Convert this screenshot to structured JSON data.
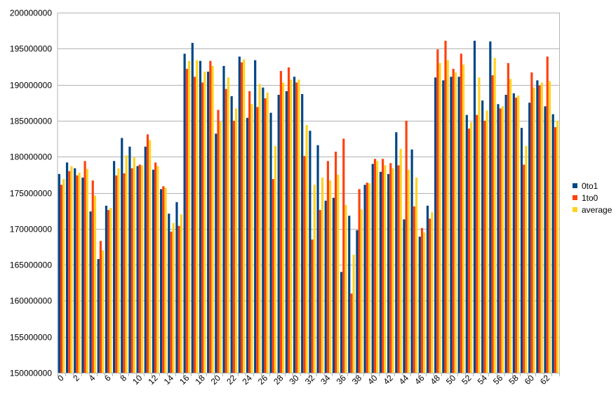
{
  "chart_data": {
    "type": "bar",
    "title": "",
    "xlabel": "",
    "ylabel": "",
    "ylim": [
      150000000,
      200000000
    ],
    "yticks": [
      150000000,
      155000000,
      160000000,
      165000000,
      170000000,
      175000000,
      180000000,
      185000000,
      190000000,
      195000000,
      200000000
    ],
    "xtick_labels": [
      "0",
      "2",
      "4",
      "6",
      "8",
      "10",
      "12",
      "14",
      "16",
      "18",
      "20",
      "22",
      "24",
      "26",
      "28",
      "30",
      "32",
      "34",
      "36",
      "38",
      "40",
      "42",
      "44",
      "46",
      "48",
      "50",
      "52",
      "54",
      "56",
      "58",
      "60",
      "62"
    ],
    "grid": "horizontal",
    "legend_position": "right",
    "colors": [
      "#004586",
      "#ff420e",
      "#ffd320"
    ],
    "categories": [
      "0",
      "1",
      "2",
      "3",
      "4",
      "5",
      "6",
      "7",
      "8",
      "9",
      "10",
      "11",
      "12",
      "13",
      "14",
      "15",
      "16",
      "17",
      "18",
      "19",
      "20",
      "21",
      "22",
      "23",
      "24",
      "25",
      "26",
      "27",
      "28",
      "29",
      "30",
      "31",
      "32",
      "33",
      "34",
      "35",
      "36",
      "37",
      "38",
      "39",
      "40",
      "41",
      "42",
      "43",
      "44",
      "45",
      "46",
      "47",
      "48",
      "49",
      "50",
      "51",
      "52",
      "53",
      "54",
      "55",
      "56",
      "57",
      "58",
      "59",
      "60",
      "61",
      "62",
      "63"
    ],
    "series": [
      {
        "name": "0to1",
        "values": [
          177600000,
          179200000,
          178400000,
          177100000,
          172400000,
          165800000,
          173200000,
          179400000,
          182600000,
          181400000,
          178700000,
          181400000,
          178200000,
          175500000,
          172100000,
          173700000,
          194300000,
          195800000,
          193300000,
          191800000,
          183200000,
          192600000,
          188400000,
          193900000,
          185400000,
          193400000,
          189600000,
          186100000,
          188600000,
          189100000,
          191100000,
          188700000,
          183600000,
          181600000,
          173900000,
          174300000,
          164000000,
          171800000,
          169800000,
          176100000,
          179000000,
          177900000,
          177600000,
          183400000,
          171300000,
          181000000,
          168900000,
          173200000,
          191000000,
          190600000,
          191100000,
          191100000,
          185800000,
          196100000,
          187800000,
          196000000,
          187300000,
          188600000,
          188800000,
          184000000,
          187500000,
          190600000,
          187000000,
          185900000
        ]
      },
      {
        "name": "1to0",
        "values": [
          176100000,
          178000000,
          177400000,
          179400000,
          176700000,
          168300000,
          172600000,
          177400000,
          177700000,
          178400000,
          178900000,
          183100000,
          179200000,
          175900000,
          169600000,
          170400000,
          192200000,
          191100000,
          190300000,
          193300000,
          186500000,
          189400000,
          185000000,
          193100000,
          189100000,
          186900000,
          188100000,
          176900000,
          191900000,
          192400000,
          190300000,
          180100000,
          168500000,
          172600000,
          179400000,
          180700000,
          182500000,
          161000000,
          175500000,
          176400000,
          179700000,
          179700000,
          179100000,
          178800000,
          185000000,
          173100000,
          170100000,
          171400000,
          194900000,
          196100000,
          192200000,
          194300000,
          183900000,
          185800000,
          185000000,
          191300000,
          186700000,
          193000000,
          188200000,
          178900000,
          191700000,
          189900000,
          193900000,
          184100000
        ]
      },
      {
        "name": "average",
        "values": [
          176900000,
          178700000,
          177800000,
          178300000,
          174600000,
          167000000,
          172900000,
          178400000,
          180200000,
          179900000,
          178800000,
          182300000,
          178700000,
          175700000,
          170800000,
          172000000,
          193300000,
          193400000,
          191800000,
          192600000,
          184900000,
          191000000,
          186700000,
          193500000,
          187300000,
          190100000,
          188900000,
          181500000,
          190300000,
          190700000,
          190700000,
          184400000,
          176100000,
          177100000,
          176700000,
          177500000,
          173300000,
          166400000,
          172700000,
          176300000,
          179400000,
          178800000,
          178400000,
          181100000,
          178200000,
          177100000,
          169500000,
          172300000,
          193000000,
          193400000,
          191700000,
          192800000,
          184800000,
          191000000,
          186400000,
          193700000,
          187000000,
          190800000,
          188500000,
          181500000,
          189600000,
          190300000,
          190500000,
          185000000
        ]
      }
    ]
  }
}
